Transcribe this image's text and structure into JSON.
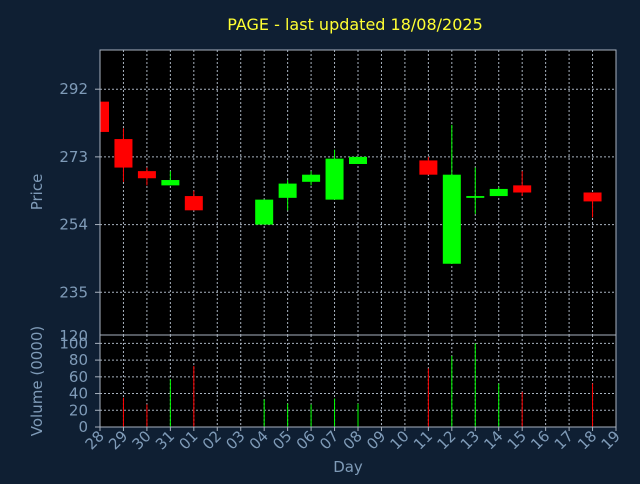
{
  "colors": {
    "background": "#0f1f33",
    "plot_background": "#000000",
    "grid": "#a8b2bf",
    "axis_text": "#7f9bb8",
    "title": "#ffff33",
    "up": "#00ff00",
    "down": "#ff0000"
  },
  "chart_data": {
    "type": "candlestick",
    "title": "PAGE - last updated 18/08/2025",
    "xlabel": "Day",
    "categories": [
      "28",
      "29",
      "30",
      "31",
      "01",
      "02",
      "03",
      "04",
      "05",
      "06",
      "07",
      "08",
      "09",
      "10",
      "11",
      "12",
      "13",
      "14",
      "15",
      "16",
      "17",
      "18",
      "19"
    ],
    "price_panel": {
      "ylabel": "Price",
      "ylim": [
        223,
        303
      ],
      "yticks": [
        235,
        254,
        273,
        292
      ],
      "candles": [
        {
          "day": "28",
          "open": 288.5,
          "close": 280,
          "high": 288.5,
          "low": 280
        },
        {
          "day": "29",
          "open": 278,
          "close": 270,
          "high": 281,
          "low": 266
        },
        {
          "day": "30",
          "open": 269,
          "close": 267,
          "high": 270,
          "low": 265
        },
        {
          "day": "31",
          "open": 265,
          "close": 266.5,
          "high": 269,
          "low": 265
        },
        {
          "day": "01",
          "open": 262,
          "close": 258,
          "high": 263.5,
          "low": 258
        },
        {
          "day": "04",
          "open": 254,
          "close": 261,
          "high": 261,
          "low": 254
        },
        {
          "day": "05",
          "open": 261.5,
          "close": 265.5,
          "high": 266.5,
          "low": 258
        },
        {
          "day": "06",
          "open": 266,
          "close": 268,
          "high": 269,
          "low": 265
        },
        {
          "day": "07",
          "open": 261,
          "close": 272.5,
          "high": 275,
          "low": 261
        },
        {
          "day": "08",
          "open": 271,
          "close": 273,
          "high": 273,
          "low": 271
        },
        {
          "day": "11",
          "open": 272,
          "close": 268,
          "high": 273,
          "low": 268
        },
        {
          "day": "12",
          "open": 243,
          "close": 268,
          "high": 282,
          "low": 243
        },
        {
          "day": "13",
          "open": 261.5,
          "close": 262,
          "high": 270,
          "low": 257
        },
        {
          "day": "14",
          "open": 262,
          "close": 264,
          "high": 264.5,
          "low": 262
        },
        {
          "day": "15",
          "open": 265,
          "close": 263,
          "high": 269,
          "low": 262
        },
        {
          "day": "18",
          "open": 263,
          "close": 260.5,
          "high": 263,
          "low": 256
        }
      ]
    },
    "volume_panel": {
      "ylabel": "Volume (0000)",
      "ylim": [
        0,
        110
      ],
      "yticks": [
        0,
        20,
        40,
        60,
        80,
        100
      ],
      "bars": [
        {
          "day": "29",
          "value": 35,
          "direction": "down"
        },
        {
          "day": "30",
          "value": 27,
          "direction": "down"
        },
        {
          "day": "31",
          "value": 57,
          "direction": "up"
        },
        {
          "day": "01",
          "value": 73,
          "direction": "down"
        },
        {
          "day": "04",
          "value": 33,
          "direction": "up"
        },
        {
          "day": "05",
          "value": 28,
          "direction": "up"
        },
        {
          "day": "06",
          "value": 27,
          "direction": "up"
        },
        {
          "day": "07",
          "value": 34,
          "direction": "up"
        },
        {
          "day": "08",
          "value": 28,
          "direction": "up"
        },
        {
          "day": "11",
          "value": 70,
          "direction": "down"
        },
        {
          "day": "12",
          "value": 85,
          "direction": "up"
        },
        {
          "day": "13",
          "value": 100,
          "direction": "up"
        },
        {
          "day": "14",
          "value": 52,
          "direction": "up"
        },
        {
          "day": "15",
          "value": 42,
          "direction": "down"
        },
        {
          "day": "18",
          "value": 52,
          "direction": "down"
        }
      ]
    },
    "price_label_top": "120",
    "grid": true
  }
}
